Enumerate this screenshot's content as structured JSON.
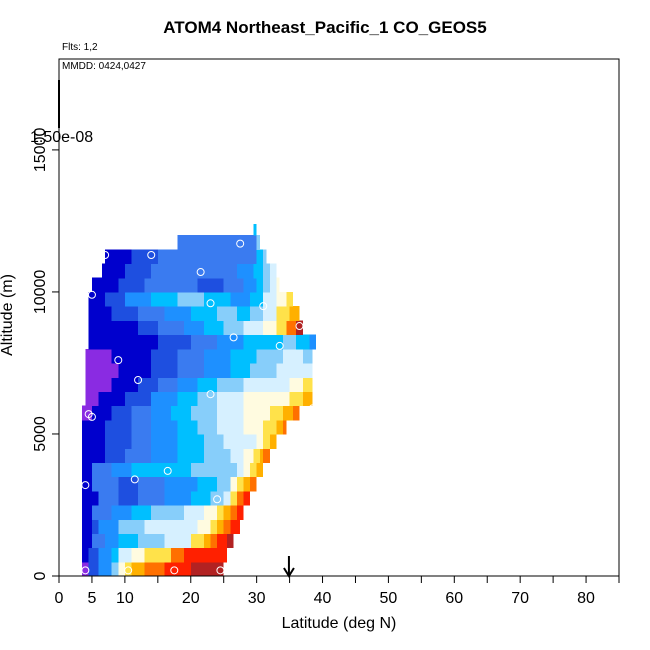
{
  "title": "ATOM4 Northeast_Pacific_1 CO_GEOS5",
  "notes": {
    "flights": "Flts: 1,2",
    "dates": "MMDD: 0424,0427"
  },
  "colorbar_tick": "1.50e-08",
  "colors": {
    "palette": [
      "#8a2be2",
      "#0000cd",
      "#1e4fe0",
      "#3a7bf0",
      "#1e90ff",
      "#00bfff",
      "#87cefa",
      "#d6f0ff",
      "#fffbe0",
      "#ffe24a",
      "#ffb000",
      "#ff7000",
      "#ff2000",
      "#b22222"
    ]
  },
  "marker": {
    "x": 34.9,
    "label": "arrow"
  },
  "chart_data": {
    "type": "heatmap",
    "title": "ATOM4 Northeast_Pacific_1 CO_GEOS5",
    "xlabel": "Latitude (deg N)",
    "ylabel": "Altitude (m)",
    "xlim": [
      0,
      85
    ],
    "ylim": [
      0,
      18200
    ],
    "x_ticks": [
      "0",
      "5",
      "10",
      "20",
      "30",
      "40",
      "50",
      "60",
      "70",
      "80"
    ],
    "x_tick_values": [
      0,
      5,
      10,
      20,
      30,
      40,
      50,
      60,
      70,
      80
    ],
    "y_ticks": [
      "0",
      "5000",
      "10000",
      "15000"
    ],
    "y_tick_values": [
      0,
      5000,
      10000,
      15000
    ],
    "x_minor_ticks": [
      15,
      25,
      35,
      45,
      55,
      65,
      75,
      85
    ],
    "grid": false,
    "legend": "none",
    "layers": [
      {
        "y0": 0,
        "y1": 500,
        "xmin": 3.5,
        "xmax": 25.0,
        "cells": [
          [
            3.5,
            0
          ],
          [
            4.5,
            2
          ],
          [
            6,
            4
          ],
          [
            8,
            6
          ],
          [
            9,
            8
          ],
          [
            10,
            9
          ],
          [
            11,
            10
          ],
          [
            13,
            11
          ],
          [
            16,
            12
          ],
          [
            20,
            13
          ]
        ]
      },
      {
        "y0": 500,
        "y1": 1000,
        "xmin": 3.5,
        "xmax": 25.5,
        "cells": [
          [
            3.5,
            1
          ],
          [
            4.5,
            2
          ],
          [
            6,
            4
          ],
          [
            8,
            5
          ],
          [
            9,
            7
          ],
          [
            11,
            8
          ],
          [
            13,
            9
          ],
          [
            15,
            9
          ],
          [
            17,
            11
          ],
          [
            19,
            12
          ],
          [
            21,
            12
          ]
        ]
      },
      {
        "y0": 1000,
        "y1": 1500,
        "xmin": 3.5,
        "xmax": 26.5,
        "cells": [
          [
            3.5,
            1
          ],
          [
            5,
            3
          ],
          [
            7,
            4
          ],
          [
            9,
            5
          ],
          [
            12,
            6
          ],
          [
            16,
            7
          ],
          [
            20,
            9
          ],
          [
            22,
            10
          ],
          [
            23,
            11
          ],
          [
            24,
            12
          ],
          [
            25.5,
            13
          ]
        ]
      },
      {
        "y0": 1500,
        "y1": 2000,
        "xmin": 3.5,
        "xmax": 27.5,
        "cells": [
          [
            3.5,
            1
          ],
          [
            5,
            2
          ],
          [
            6,
            4
          ],
          [
            9,
            6
          ],
          [
            13,
            7
          ],
          [
            18,
            7
          ],
          [
            21,
            8
          ],
          [
            23,
            9
          ],
          [
            24,
            10
          ],
          [
            25,
            11
          ],
          [
            26,
            12
          ]
        ]
      },
      {
        "y0": 2000,
        "y1": 2500,
        "xmin": 3.5,
        "xmax": 28.0,
        "cells": [
          [
            3.5,
            1
          ],
          [
            5,
            3
          ],
          [
            8,
            4
          ],
          [
            11,
            5
          ],
          [
            14,
            6
          ],
          [
            19,
            7
          ],
          [
            22,
            8
          ],
          [
            24,
            9
          ],
          [
            25,
            10
          ],
          [
            26,
            11
          ],
          [
            27,
            12
          ]
        ]
      },
      {
        "y0": 2500,
        "y1": 3000,
        "xmin": 3.5,
        "xmax": 29.0,
        "cells": [
          [
            3.5,
            1
          ],
          [
            6,
            3
          ],
          [
            9,
            2
          ],
          [
            12,
            3
          ],
          [
            16,
            4
          ],
          [
            20,
            5
          ],
          [
            23,
            6
          ],
          [
            25,
            7
          ],
          [
            26,
            9
          ],
          [
            27,
            11
          ],
          [
            28,
            12
          ]
        ]
      },
      {
        "y0": 3000,
        "y1": 3500,
        "xmin": 3.5,
        "xmax": 30.0,
        "cells": [
          [
            3.5,
            1
          ],
          [
            5,
            3
          ],
          [
            9,
            2
          ],
          [
            12,
            3
          ],
          [
            16,
            4
          ],
          [
            21,
            5
          ],
          [
            24,
            6
          ],
          [
            26,
            8
          ],
          [
            27,
            9
          ],
          [
            28,
            10
          ],
          [
            29,
            11
          ]
        ]
      },
      {
        "y0": 3500,
        "y1": 4000,
        "xmin": 3.5,
        "xmax": 31.0,
        "cells": [
          [
            3.5,
            1
          ],
          [
            5,
            3
          ],
          [
            8,
            4
          ],
          [
            11,
            5
          ],
          [
            15,
            5
          ],
          [
            20,
            6
          ],
          [
            24,
            6
          ],
          [
            27,
            7
          ],
          [
            28,
            8
          ],
          [
            29,
            9
          ],
          [
            30,
            10
          ]
        ]
      },
      {
        "y0": 4000,
        "y1": 4500,
        "xmin": 3.5,
        "xmax": 32.0,
        "cells": [
          [
            3.5,
            1
          ],
          [
            7,
            2
          ],
          [
            10,
            3
          ],
          [
            14,
            4
          ],
          [
            18,
            5
          ],
          [
            22,
            6
          ],
          [
            26,
            7
          ],
          [
            28,
            8
          ],
          [
            29.5,
            9
          ],
          [
            30.5,
            10
          ],
          [
            31,
            11
          ]
        ]
      },
      {
        "y0": 4500,
        "y1": 5000,
        "xmin": 3.5,
        "xmax": 33.0,
        "cells": [
          [
            3.5,
            1
          ],
          [
            7,
            2
          ],
          [
            11,
            3
          ],
          [
            14,
            4
          ],
          [
            18,
            5
          ],
          [
            22,
            6
          ],
          [
            25,
            7
          ],
          [
            28,
            7
          ],
          [
            30,
            8
          ],
          [
            31,
            9
          ],
          [
            32,
            10
          ]
        ]
      },
      {
        "y0": 5000,
        "y1": 5500,
        "xmin": 3.5,
        "xmax": 34.5,
        "cells": [
          [
            3.5,
            1
          ],
          [
            7,
            2
          ],
          [
            11,
            3
          ],
          [
            14,
            4
          ],
          [
            18,
            5
          ],
          [
            21,
            6
          ],
          [
            24,
            7
          ],
          [
            28,
            8
          ],
          [
            31,
            9
          ],
          [
            33,
            10
          ],
          [
            34,
            11
          ]
        ]
      },
      {
        "y0": 5500,
        "y1": 6000,
        "xmin": 3.5,
        "xmax": 36.5,
        "cells": [
          [
            3.5,
            0
          ],
          [
            5,
            1
          ],
          [
            8,
            2
          ],
          [
            11,
            3
          ],
          [
            14,
            4
          ],
          [
            17,
            5
          ],
          [
            20,
            6
          ],
          [
            24,
            7
          ],
          [
            28,
            8
          ],
          [
            32,
            9
          ],
          [
            34,
            10
          ],
          [
            35.5,
            11
          ]
        ]
      },
      {
        "y0": 6000,
        "y1": 6500,
        "xmin": 4.0,
        "xmax": 38.5,
        "cells": [
          [
            4,
            0
          ],
          [
            6,
            1
          ],
          [
            10,
            2
          ],
          [
            14,
            4
          ],
          [
            18,
            5
          ],
          [
            21,
            6
          ],
          [
            24,
            7
          ],
          [
            28,
            8
          ],
          [
            32,
            8
          ],
          [
            35,
            9
          ],
          [
            37,
            10
          ]
        ]
      },
      {
        "y0": 6500,
        "y1": 7000,
        "xmin": 4.0,
        "xmax": 38.5,
        "cells": [
          [
            4,
            0
          ],
          [
            8,
            1
          ],
          [
            12,
            2
          ],
          [
            15,
            3
          ],
          [
            18,
            4
          ],
          [
            21,
            5
          ],
          [
            24,
            6
          ],
          [
            28,
            7
          ],
          [
            32,
            7
          ],
          [
            35,
            8
          ],
          [
            37,
            9
          ]
        ]
      },
      {
        "y0": 7000,
        "y1": 7500,
        "xmin": 4.0,
        "xmax": 38.5,
        "cells": [
          [
            4,
            0
          ],
          [
            9,
            1
          ],
          [
            14,
            2
          ],
          [
            18,
            3
          ],
          [
            22,
            4
          ],
          [
            26,
            5
          ],
          [
            29,
            6
          ],
          [
            33,
            7
          ],
          [
            36,
            7
          ]
        ]
      },
      {
        "y0": 7500,
        "y1": 8000,
        "xmin": 4.0,
        "xmax": 38.5,
        "cells": [
          [
            4,
            0
          ],
          [
            8,
            1
          ],
          [
            14,
            2
          ],
          [
            18,
            3
          ],
          [
            22,
            4
          ],
          [
            26,
            5
          ],
          [
            30,
            6
          ],
          [
            34,
            7
          ],
          [
            37,
            6
          ]
        ]
      },
      {
        "y0": 8000,
        "y1": 8500,
        "xmin": 4.5,
        "xmax": 39.0,
        "cells": [
          [
            4.5,
            1
          ],
          [
            10,
            1
          ],
          [
            15,
            2
          ],
          [
            20,
            3
          ],
          [
            24,
            4
          ],
          [
            28,
            5
          ],
          [
            31,
            5
          ],
          [
            34,
            6
          ],
          [
            36,
            5
          ],
          [
            38,
            4
          ]
        ]
      },
      {
        "y0": 8500,
        "y1": 9000,
        "xmin": 4.5,
        "xmax": 37.0,
        "cells": [
          [
            4.5,
            1
          ],
          [
            9,
            1
          ],
          [
            12,
            2
          ],
          [
            15,
            3
          ],
          [
            19,
            4
          ],
          [
            22,
            5
          ],
          [
            25,
            6
          ],
          [
            28,
            7
          ],
          [
            31,
            8
          ],
          [
            33,
            9
          ],
          [
            34.5,
            11
          ],
          [
            36,
            13
          ]
        ]
      },
      {
        "y0": 9000,
        "y1": 9500,
        "xmin": 4.5,
        "xmax": 36.5,
        "cells": [
          [
            4.5,
            1
          ],
          [
            8,
            2
          ],
          [
            12,
            3
          ],
          [
            16,
            4
          ],
          [
            20,
            5
          ],
          [
            24,
            6
          ],
          [
            27,
            5
          ],
          [
            29,
            6
          ],
          [
            31,
            7
          ],
          [
            33,
            9
          ],
          [
            35,
            10
          ]
        ]
      },
      {
        "y0": 9500,
        "y1": 10000,
        "xmin": 4.5,
        "xmax": 35.5,
        "cells": [
          [
            4.5,
            1
          ],
          [
            7,
            2
          ],
          [
            10,
            4
          ],
          [
            14,
            5
          ],
          [
            18,
            6
          ],
          [
            22,
            5
          ],
          [
            26,
            4
          ],
          [
            29,
            5
          ],
          [
            31,
            7
          ],
          [
            33,
            8
          ],
          [
            34.5,
            9
          ]
        ]
      },
      {
        "y0": 10000,
        "y1": 10500,
        "xmin": 5.0,
        "xmax": 33.5,
        "cells": [
          [
            5,
            1
          ],
          [
            9,
            2
          ],
          [
            13,
            3
          ],
          [
            17,
            3
          ],
          [
            21,
            2
          ],
          [
            25,
            3
          ],
          [
            28,
            4
          ],
          [
            30,
            5
          ],
          [
            31,
            6
          ],
          [
            32,
            7
          ],
          [
            33,
            8
          ]
        ]
      },
      {
        "y0": 10500,
        "y1": 11000,
        "xmin": 6.5,
        "xmax": 33.0,
        "cells": [
          [
            6.5,
            1
          ],
          [
            10,
            2
          ],
          [
            14,
            3
          ],
          [
            19,
            3
          ],
          [
            23,
            3
          ],
          [
            27,
            4
          ],
          [
            29.5,
            5
          ],
          [
            31,
            6
          ],
          [
            32,
            7
          ]
        ]
      },
      {
        "y0": 11000,
        "y1": 11500,
        "xmin": 7.0,
        "xmax": 31.5,
        "cells": [
          [
            7,
            1
          ],
          [
            11,
            2
          ],
          [
            15,
            3
          ],
          [
            19,
            3
          ],
          [
            23,
            3
          ],
          [
            27,
            3
          ],
          [
            30,
            5
          ],
          [
            31,
            6
          ]
        ]
      },
      {
        "y0": 11500,
        "y1": 12000,
        "xmin": 18.0,
        "xmax": 30.5,
        "cells": [
          [
            18,
            3
          ],
          [
            23,
            3
          ],
          [
            27,
            3
          ],
          [
            30,
            6
          ]
        ]
      },
      {
        "y0": 12000,
        "y1": 12400,
        "xmin": 29.5,
        "xmax": 30.0,
        "cells": [
          [
            29.5,
            5
          ]
        ]
      }
    ],
    "points": [
      [
        4.0,
        200
      ],
      [
        10.5,
        200
      ],
      [
        17.5,
        200
      ],
      [
        24.5,
        200
      ],
      [
        4.0,
        3200
      ],
      [
        11.5,
        3400
      ],
      [
        16.5,
        3700
      ],
      [
        24.0,
        2700
      ],
      [
        4.5,
        5700
      ],
      [
        5.0,
        5600
      ],
      [
        38.5,
        5900
      ],
      [
        23.0,
        6400
      ],
      [
        12.0,
        6900
      ],
      [
        9.0,
        7600
      ],
      [
        26.5,
        8400
      ],
      [
        33.5,
        8100
      ],
      [
        36.5,
        8800
      ],
      [
        5.0,
        9900
      ],
      [
        23.0,
        9600
      ],
      [
        31.0,
        9500
      ],
      [
        21.5,
        10700
      ],
      [
        7.0,
        11300
      ],
      [
        14.0,
        11300
      ],
      [
        27.5,
        11700
      ]
    ]
  }
}
